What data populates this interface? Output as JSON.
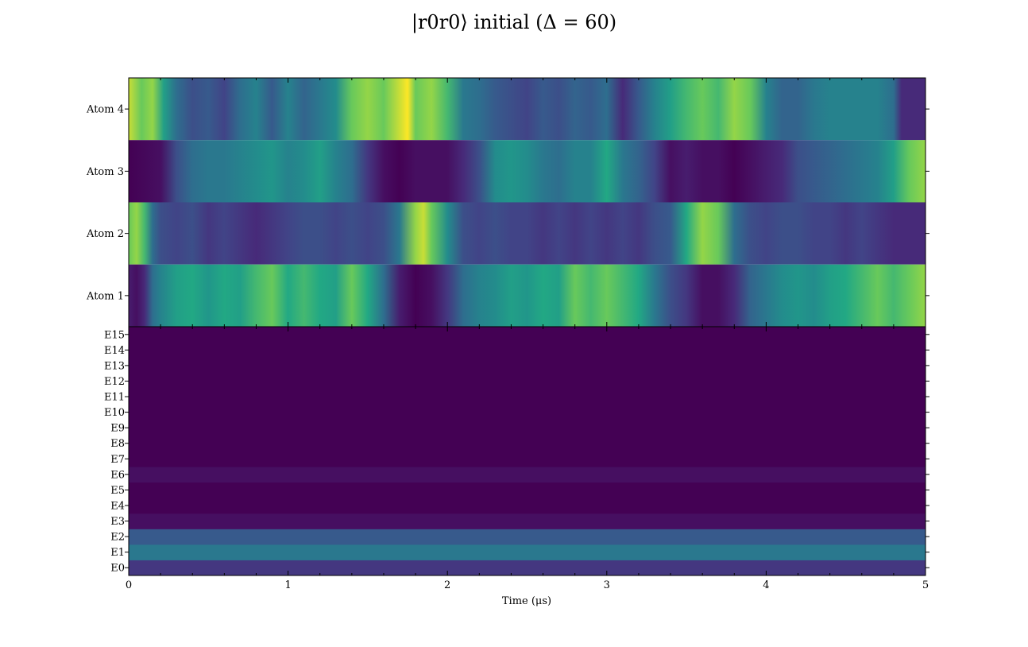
{
  "chart_data": [
    {
      "type": "heatmap",
      "title": "|r0r0⟩ initial (Δ = 60)",
      "rows": [
        "Atom 1",
        "Atom 2",
        "Atom 3",
        "Atom 4"
      ],
      "xlim": [
        0,
        5
      ],
      "x_ticks": [
        "0",
        "1",
        "2",
        "3",
        "4",
        "5"
      ],
      "colormap": "viridis",
      "value_range": [
        0,
        1
      ],
      "series": [
        {
          "name": "Atom 4",
          "x": [
            0,
            0.08,
            0.15,
            0.22,
            0.3,
            0.4,
            0.5,
            0.6,
            0.7,
            0.8,
            0.9,
            1.0,
            1.1,
            1.2,
            1.3,
            1.4,
            1.5,
            1.6,
            1.7,
            1.75,
            1.8,
            1.9,
            2.0,
            2.1,
            2.2,
            2.3,
            2.4,
            2.5,
            2.6,
            2.7,
            2.8,
            2.9,
            3.0,
            3.1,
            3.2,
            3.3,
            3.4,
            3.5,
            3.6,
            3.7,
            3.8,
            3.9,
            4.0,
            4.1,
            4.2,
            4.3,
            4.4,
            4.5,
            4.6,
            4.7,
            4.8,
            4.85,
            4.9,
            5.0
          ],
          "values": [
            0.95,
            0.85,
            0.9,
            0.7,
            0.45,
            0.3,
            0.35,
            0.25,
            0.45,
            0.55,
            0.35,
            0.55,
            0.4,
            0.5,
            0.6,
            0.85,
            0.9,
            0.85,
            0.95,
            1.0,
            0.85,
            0.9,
            0.8,
            0.5,
            0.45,
            0.35,
            0.3,
            0.25,
            0.35,
            0.3,
            0.4,
            0.35,
            0.45,
            0.15,
            0.35,
            0.55,
            0.7,
            0.8,
            0.85,
            0.8,
            0.9,
            0.85,
            0.55,
            0.4,
            0.4,
            0.5,
            0.55,
            0.55,
            0.55,
            0.55,
            0.45,
            0.15,
            0.15,
            0.15
          ]
        },
        {
          "name": "Atom 3",
          "x": [
            0,
            0.2,
            0.3,
            0.4,
            0.5,
            0.6,
            0.7,
            0.8,
            0.9,
            1.0,
            1.1,
            1.2,
            1.3,
            1.4,
            1.5,
            1.6,
            1.7,
            1.8,
            1.9,
            2.0,
            2.1,
            2.2,
            2.3,
            2.4,
            2.5,
            2.6,
            2.7,
            2.8,
            2.9,
            3.0,
            3.1,
            3.2,
            3.3,
            3.4,
            3.5,
            3.6,
            3.7,
            3.8,
            3.9,
            4.0,
            4.1,
            4.2,
            4.3,
            4.4,
            4.5,
            4.6,
            4.7,
            4.8,
            4.9,
            5.0
          ],
          "values": [
            0.0,
            0.05,
            0.3,
            0.45,
            0.5,
            0.5,
            0.55,
            0.6,
            0.65,
            0.55,
            0.6,
            0.7,
            0.55,
            0.45,
            0.2,
            0.05,
            0.0,
            0.05,
            0.05,
            0.05,
            0.15,
            0.3,
            0.6,
            0.65,
            0.6,
            0.5,
            0.45,
            0.55,
            0.55,
            0.75,
            0.5,
            0.4,
            0.25,
            0.05,
            0.1,
            0.05,
            0.05,
            0.0,
            0.05,
            0.1,
            0.15,
            0.3,
            0.35,
            0.4,
            0.45,
            0.5,
            0.55,
            0.7,
            0.85,
            0.9
          ]
        },
        {
          "name": "Atom 2",
          "x": [
            0,
            0.05,
            0.1,
            0.15,
            0.2,
            0.3,
            0.4,
            0.5,
            0.6,
            0.7,
            0.8,
            0.9,
            1.0,
            1.1,
            1.2,
            1.3,
            1.4,
            1.5,
            1.6,
            1.7,
            1.8,
            1.85,
            1.9,
            2.0,
            2.1,
            2.2,
            2.3,
            2.4,
            2.5,
            2.6,
            2.7,
            2.8,
            2.9,
            3.0,
            3.1,
            3.2,
            3.3,
            3.4,
            3.5,
            3.6,
            3.7,
            3.8,
            3.9,
            4.0,
            4.1,
            4.2,
            4.3,
            4.4,
            4.5,
            4.6,
            4.7,
            4.8,
            4.9,
            5.0
          ],
          "values": [
            0.85,
            0.9,
            0.8,
            0.45,
            0.3,
            0.25,
            0.3,
            0.2,
            0.25,
            0.2,
            0.15,
            0.2,
            0.25,
            0.3,
            0.3,
            0.25,
            0.3,
            0.25,
            0.3,
            0.5,
            0.9,
            0.95,
            0.85,
            0.6,
            0.3,
            0.25,
            0.3,
            0.25,
            0.25,
            0.2,
            0.25,
            0.2,
            0.25,
            0.2,
            0.25,
            0.2,
            0.3,
            0.35,
            0.75,
            0.9,
            0.85,
            0.45,
            0.3,
            0.25,
            0.3,
            0.3,
            0.25,
            0.25,
            0.2,
            0.25,
            0.2,
            0.15,
            0.15,
            0.15
          ]
        },
        {
          "name": "Atom 1",
          "x": [
            0,
            0.05,
            0.1,
            0.15,
            0.2,
            0.3,
            0.4,
            0.5,
            0.6,
            0.7,
            0.8,
            0.9,
            1.0,
            1.1,
            1.2,
            1.3,
            1.4,
            1.5,
            1.6,
            1.7,
            1.8,
            1.9,
            2.0,
            2.1,
            2.2,
            2.3,
            2.4,
            2.5,
            2.6,
            2.7,
            2.8,
            2.9,
            3.0,
            3.1,
            3.2,
            3.3,
            3.4,
            3.5,
            3.6,
            3.7,
            3.8,
            3.9,
            4.0,
            4.1,
            4.2,
            4.3,
            4.4,
            4.5,
            4.6,
            4.7,
            4.8,
            4.9,
            5.0
          ],
          "values": [
            0.1,
            0.05,
            0.15,
            0.45,
            0.55,
            0.7,
            0.75,
            0.65,
            0.75,
            0.7,
            0.8,
            0.85,
            0.75,
            0.8,
            0.75,
            0.7,
            0.85,
            0.75,
            0.45,
            0.1,
            0.0,
            0.05,
            0.2,
            0.45,
            0.55,
            0.6,
            0.7,
            0.65,
            0.75,
            0.7,
            0.85,
            0.8,
            0.85,
            0.8,
            0.75,
            0.5,
            0.3,
            0.2,
            0.05,
            0.05,
            0.15,
            0.4,
            0.5,
            0.6,
            0.65,
            0.6,
            0.7,
            0.75,
            0.8,
            0.85,
            0.8,
            0.85,
            0.9
          ]
        }
      ]
    },
    {
      "type": "heatmap",
      "rows": [
        "E0",
        "E1",
        "E2",
        "E3",
        "E4",
        "E5",
        "E6",
        "E7",
        "E8",
        "E9",
        "E10",
        "E11",
        "E12",
        "E13",
        "E14",
        "E15"
      ],
      "xlim": [
        0,
        5
      ],
      "xlabel": "Time (μs)",
      "x_ticks": [
        "0",
        "1",
        "2",
        "3",
        "4",
        "5"
      ],
      "colormap": "viridis",
      "value_range": [
        0,
        1
      ],
      "values": [
        0.2,
        0.5,
        0.35,
        0.05,
        0.0,
        0.0,
        0.05,
        0.0,
        0.0,
        0.0,
        0.0,
        0.0,
        0.0,
        0.0,
        0.0,
        0.0
      ]
    }
  ]
}
